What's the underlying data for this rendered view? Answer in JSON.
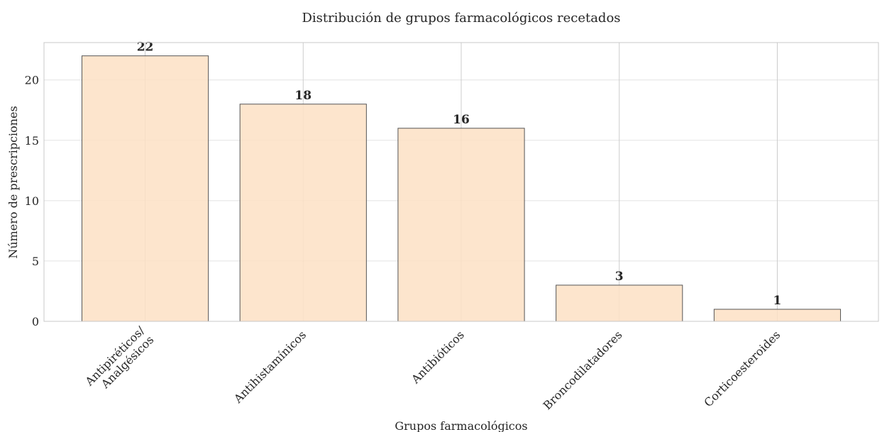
{
  "chart_data": {
    "type": "bar",
    "title": "Distribución de grupos farmacológicos recetados",
    "x_label": "Grupos farmacológicos",
    "y_label": "Número de prescripciones",
    "categories": [
      "Antipiréticos/\nAnalgésicos",
      "Antihistamínicos",
      "Antibióticos",
      "Broncodilatadores",
      "Corticoesteroides"
    ],
    "values": [
      22,
      18,
      16,
      3,
      1
    ],
    "color": "#fde0c4",
    "edge_color": "#555555",
    "ylim": [
      0,
      23.1
    ],
    "yticks": [
      0,
      5,
      10,
      15,
      20
    ],
    "grid": true
  }
}
